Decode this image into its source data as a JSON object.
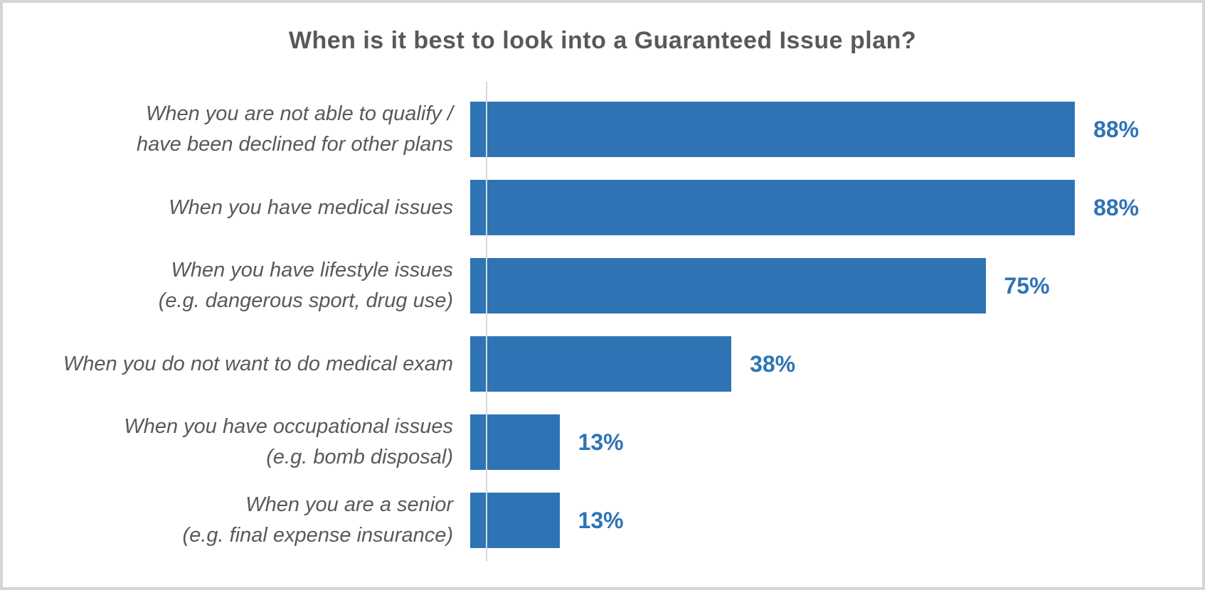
{
  "frame": {
    "background": "#FFFFFF",
    "border_color": "#D6D6D6"
  },
  "chart_data": {
    "type": "bar",
    "orientation": "horizontal",
    "title": "When is it best to look into a Guaranteed Issue plan?",
    "categories": [
      "When you are not able to qualify /\nhave been declined for other plans",
      "When you have medical issues",
      "When you have lifestyle issues\n(e.g. dangerous sport, drug use)",
      "When you do not want to do medical exam",
      "When you have occupational issues\n(e.g. bomb disposal)",
      "When you are a senior\n(e.g. final expense insurance)"
    ],
    "values": [
      88,
      88,
      75,
      38,
      13,
      13
    ],
    "value_labels": [
      "88%",
      "88%",
      "75%",
      "38%",
      "13%",
      "13%"
    ],
    "xlabel": "",
    "ylabel": "",
    "xlim": [
      0,
      100
    ],
    "grid": false,
    "legend": false,
    "value_label_position": "outside-end",
    "colors": {
      "bar": "#2E74B5",
      "value_label": "#2E74B6",
      "category_label": "#595959",
      "title": "#595959",
      "axis_line": "#D9D9D9"
    }
  }
}
